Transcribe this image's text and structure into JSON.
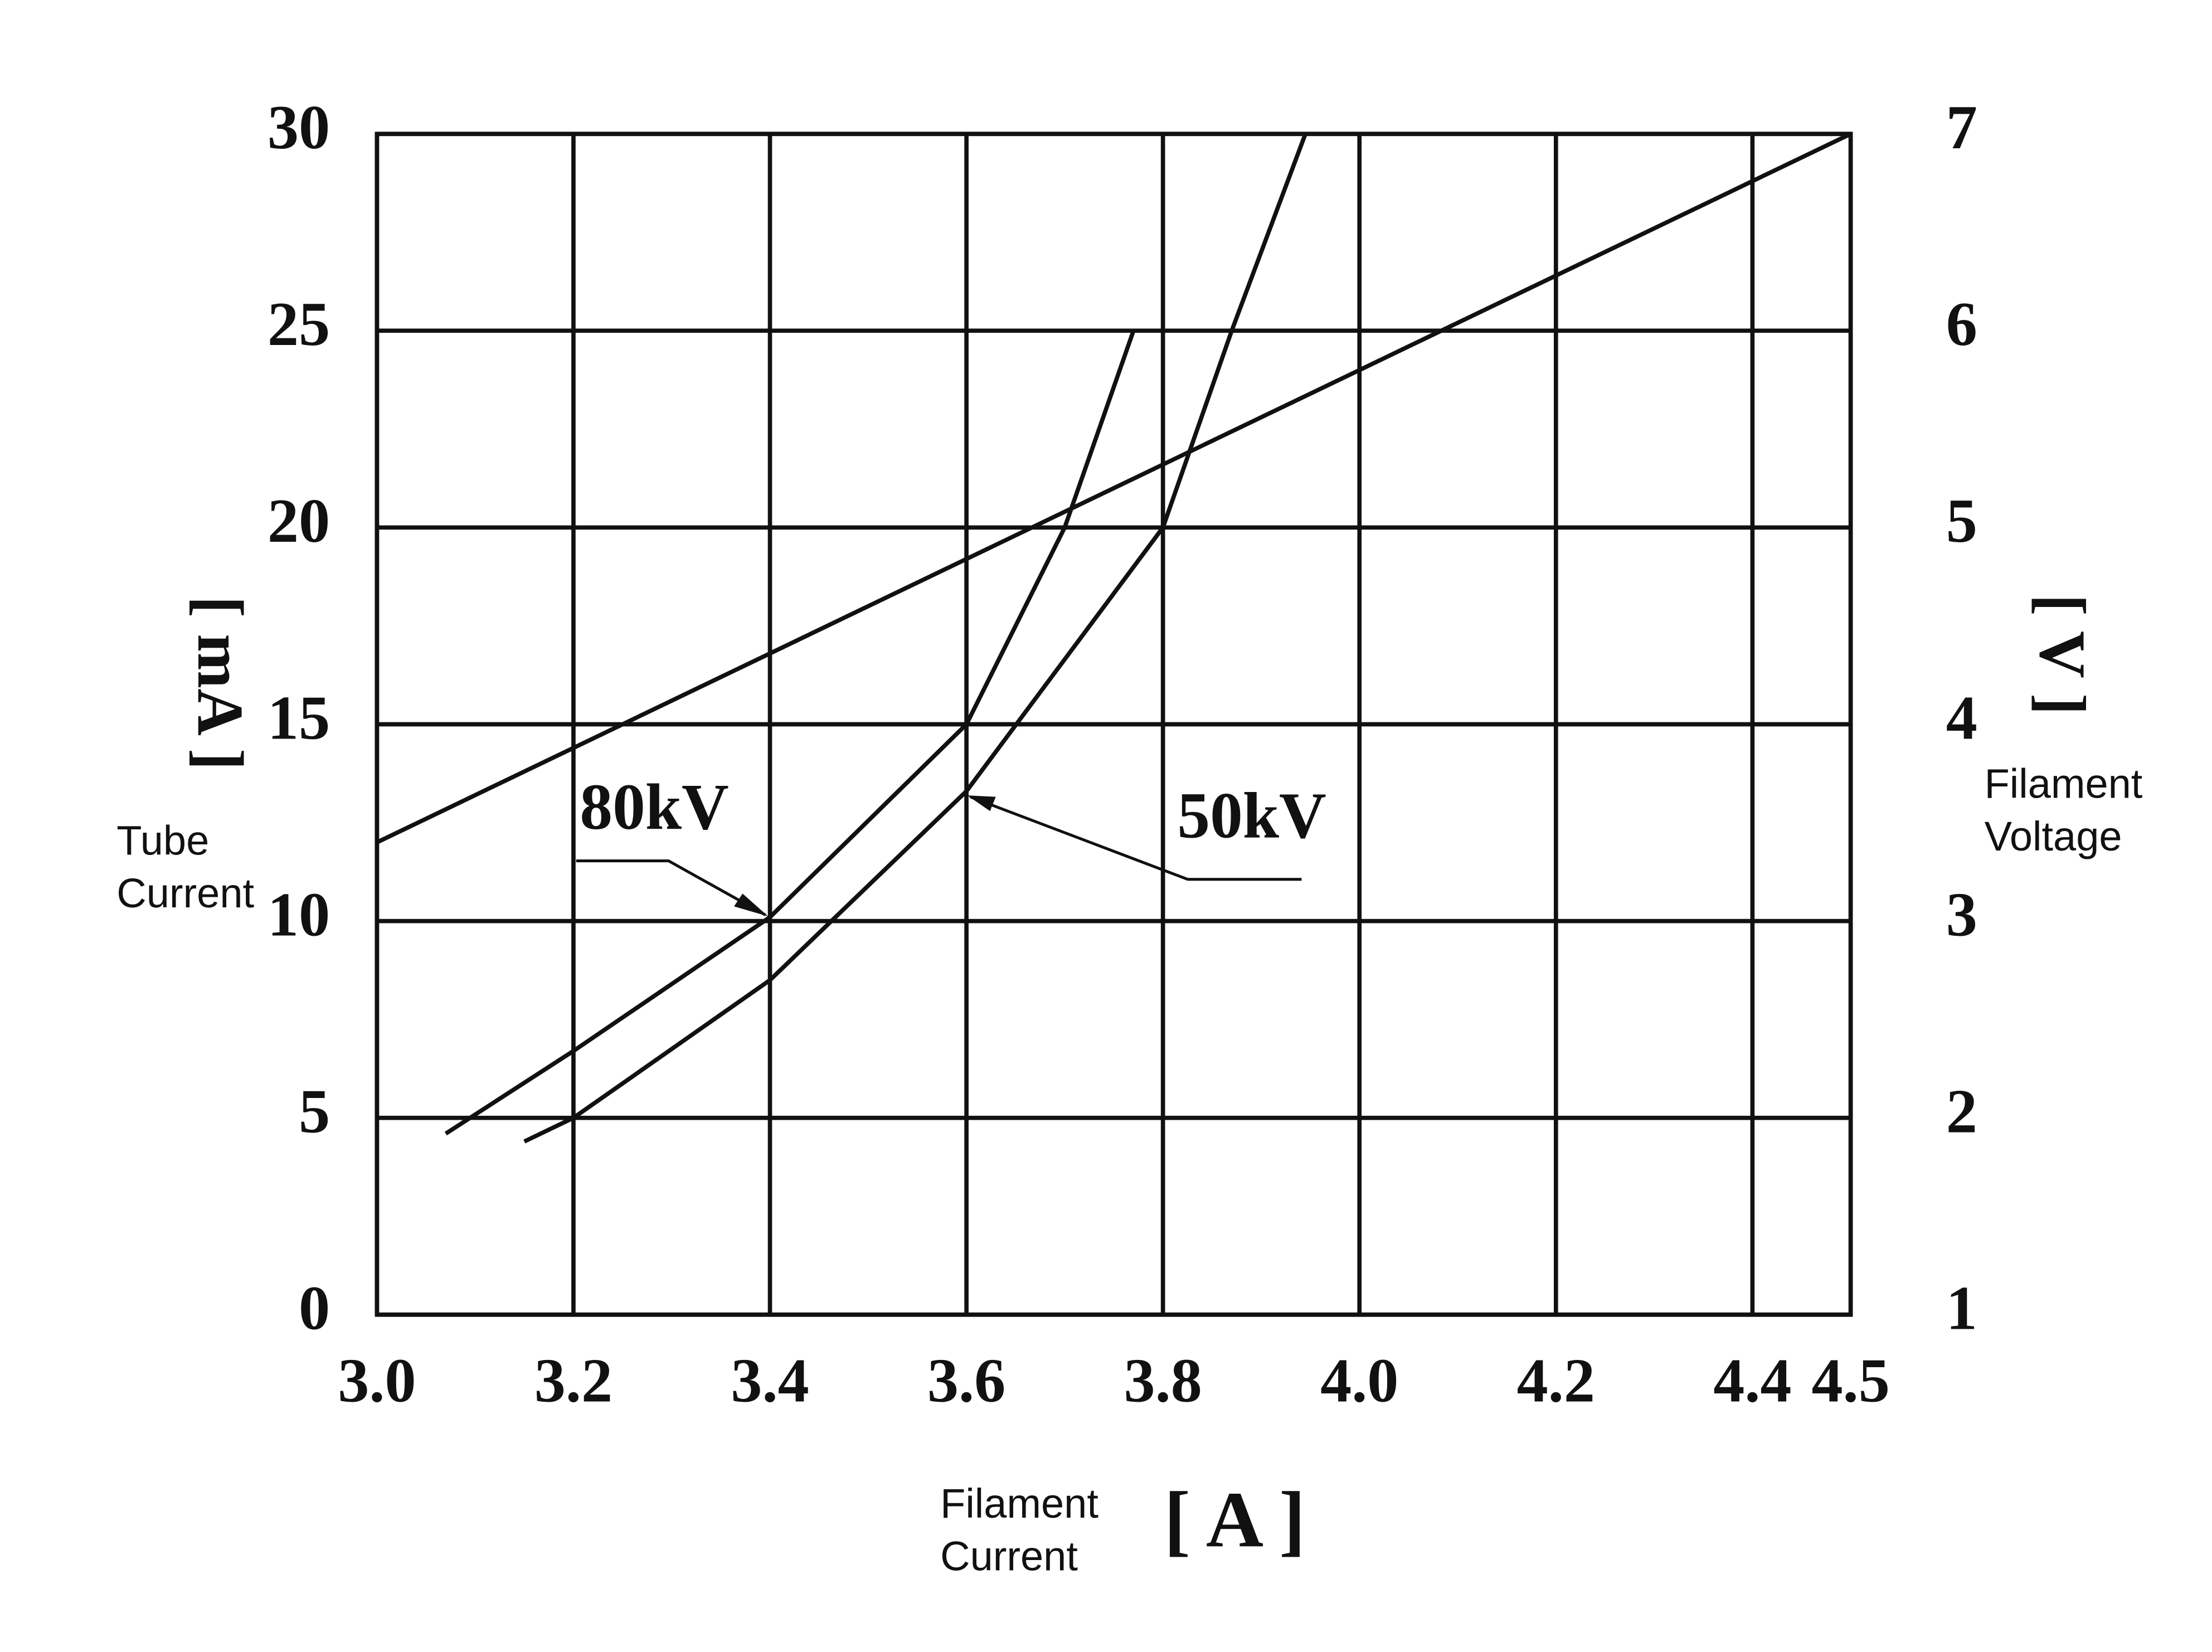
{
  "chart_data": {
    "type": "line",
    "x_label": [
      "Filament",
      "Current"
    ],
    "x_unit": "[ A ]",
    "y_label": [
      "Tube",
      "Current"
    ],
    "y_unit": "[ mA ]",
    "y2_label": [
      "Filament",
      "Voltage"
    ],
    "y2_unit": "[ V ]",
    "xlim": [
      3.0,
      4.5
    ],
    "xticks": [
      {
        "value": 3.0,
        "label": "3.0"
      },
      3.2,
      3.4,
      3.6,
      3.8,
      {
        "value": 4.0,
        "label": "4.0"
      },
      4.2,
      4.4,
      4.5
    ],
    "ylim": [
      0,
      30
    ],
    "yticks": [
      0,
      5,
      10,
      15,
      20,
      25,
      30
    ],
    "y2lim": [
      1,
      7
    ],
    "y2ticks": [
      1,
      2,
      3,
      4,
      5,
      6,
      7
    ],
    "grid": true,
    "series": [
      {
        "name": "80kV",
        "color": "#111111",
        "x": [
          3.07,
          3.2,
          3.4,
          3.6,
          3.7,
          3.77
        ],
        "values": [
          4.6,
          6.7,
          10.1,
          15,
          20,
          25
        ]
      },
      {
        "name": "50kV",
        "color": "#111111",
        "x": [
          3.15,
          3.2,
          3.4,
          3.6,
          3.8,
          3.87,
          3.945
        ],
        "values": [
          4.4,
          5,
          8.5,
          13.3,
          20,
          25,
          30
        ]
      },
      {
        "color": "#111111",
        "axis": "y2",
        "x": [
          3.0,
          4.5
        ],
        "values": [
          3.4,
          7.0
        ]
      }
    ]
  }
}
